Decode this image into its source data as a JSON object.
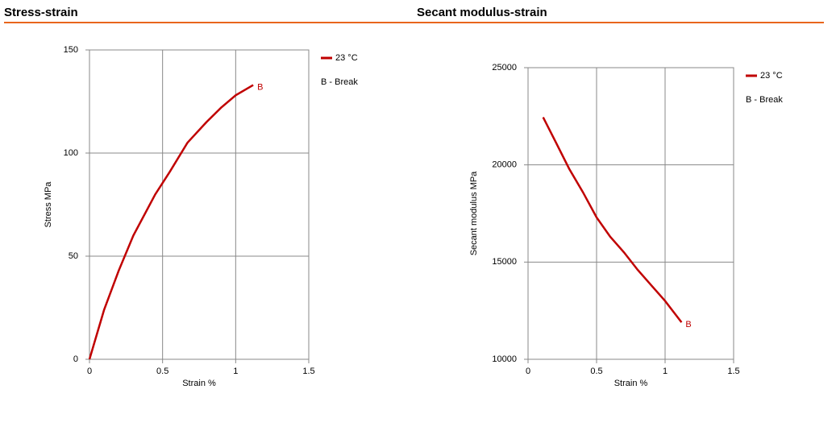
{
  "chart_data": [
    {
      "type": "line",
      "title": "Stress-strain",
      "x_label": "Strain  %",
      "y_label": "Stress MPa",
      "x": [
        0,
        0.05,
        0.1,
        0.2,
        0.3,
        0.45,
        0.55,
        0.67,
        0.8,
        0.9,
        1.0,
        1.12
      ],
      "series": [
        {
          "name": "23 °C",
          "color": "#c00000",
          "values": [
            0,
            12,
            24,
            43,
            60,
            80,
            91,
            105,
            115,
            122,
            128,
            133
          ]
        }
      ],
      "annotation": "B",
      "note": "B - Break",
      "xlim": [
        0,
        1.5
      ],
      "ylim": [
        0,
        150
      ],
      "xticks": [
        0,
        0.5,
        1,
        1.5
      ],
      "yticks": [
        0,
        50,
        100,
        150
      ],
      "grid": true
    },
    {
      "type": "line",
      "title": "Secant modulus-strain",
      "x_label": "Strain  %",
      "y_label": "Secant modulus MPa",
      "x": [
        0.11,
        0.2,
        0.3,
        0.4,
        0.5,
        0.6,
        0.7,
        0.8,
        0.9,
        1.0,
        1.12
      ],
      "series": [
        {
          "name": "23 °C",
          "color": "#c00000",
          "values": [
            22450,
            21200,
            19800,
            18600,
            17300,
            16300,
            15500,
            14600,
            13800,
            13000,
            11900
          ]
        }
      ],
      "annotation": "B",
      "note": "B - Break",
      "xlim": [
        0,
        1.5
      ],
      "ylim": [
        10000,
        25000
      ],
      "xticks": [
        0,
        0.5,
        1,
        1.5
      ],
      "yticks": [
        10000,
        15000,
        20000,
        25000
      ],
      "grid": true
    }
  ]
}
